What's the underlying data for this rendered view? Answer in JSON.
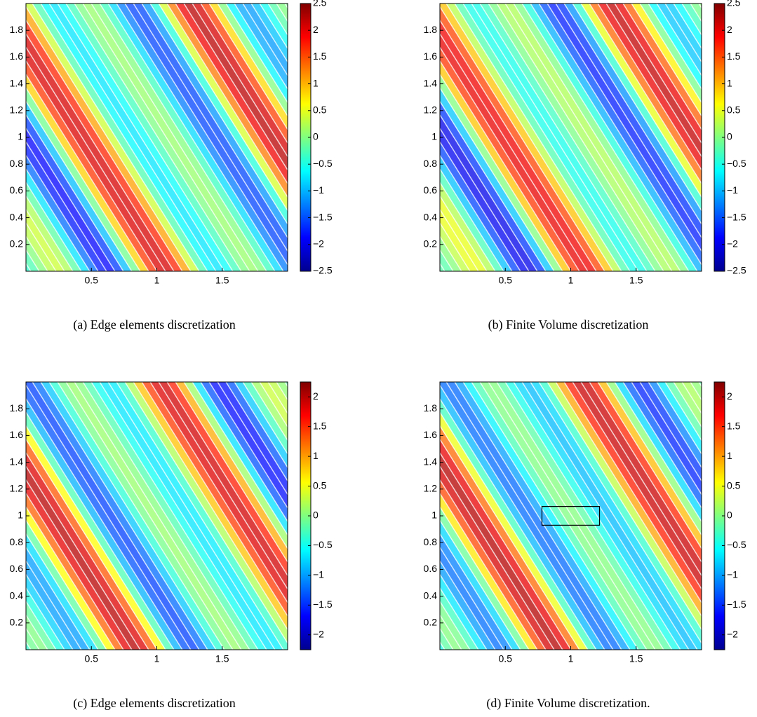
{
  "chart_data": [
    {
      "type": "contour",
      "caption": "(a)  Edge elements discretization",
      "colormap": "jet",
      "xlim": [
        0,
        2
      ],
      "ylim": [
        0,
        2
      ],
      "xticks": [
        0.5,
        1,
        1.5
      ],
      "yticks": [
        0.2,
        0.4,
        0.6,
        0.8,
        1,
        1.2,
        1.4,
        1.6,
        1.8
      ],
      "clim": [
        -2.5,
        2.5
      ],
      "cticks": [
        {
          "value": -2.5,
          "label": "−2.5"
        },
        {
          "value": -2,
          "label": "−2"
        },
        {
          "value": -1.5,
          "label": "−1.5"
        },
        {
          "value": -1,
          "label": "−1"
        },
        {
          "value": -0.5,
          "label": "−0.5"
        },
        0,
        0.5,
        1,
        1.5,
        2,
        2.5
      ]
    },
    {
      "type": "contour",
      "caption": "(b)  Finite Volume discretization",
      "colormap": "jet",
      "xlim": [
        0,
        2
      ],
      "ylim": [
        0,
        2
      ],
      "xticks": [
        0.5,
        1,
        1.5
      ],
      "yticks": [
        0.2,
        0.4,
        0.6,
        0.8,
        1,
        1.2,
        1.4,
        1.6,
        1.8
      ],
      "clim": [
        -2.5,
        2.5
      ],
      "cticks": [
        {
          "value": -2.5,
          "label": "−2.5"
        },
        {
          "value": -2,
          "label": "−2"
        },
        {
          "value": -1.5,
          "label": "−1.5"
        },
        {
          "value": -1,
          "label": "−1"
        },
        {
          "value": -0.5,
          "label": "−0.5"
        },
        0,
        0.5,
        1,
        1.5,
        2,
        2.5
      ]
    },
    {
      "type": "contour",
      "caption": "(c)  Edge elements discretization",
      "colormap": "jet",
      "xlim": [
        0,
        2
      ],
      "ylim": [
        0,
        2
      ],
      "xticks": [
        0.5,
        1,
        1.5
      ],
      "yticks": [
        0.2,
        0.4,
        0.6,
        0.8,
        1,
        1.2,
        1.4,
        1.6,
        1.8
      ],
      "clim": [
        -2.25,
        2.25
      ],
      "cticks": [
        {
          "value": -2,
          "label": "−2"
        },
        {
          "value": -1.5,
          "label": "−1.5"
        },
        {
          "value": -1,
          "label": "−1"
        },
        {
          "value": -0.5,
          "label": "−0.5"
        },
        0,
        0.5,
        1,
        1.5,
        2
      ]
    },
    {
      "type": "contour",
      "caption": "(d)  Finite Volume discretization.",
      "colormap": "jet",
      "xlim": [
        0,
        2
      ],
      "ylim": [
        0,
        2
      ],
      "xticks": [
        0.5,
        1,
        1.5
      ],
      "yticks": [
        0.2,
        0.4,
        0.6,
        0.8,
        1,
        1.2,
        1.4,
        1.6,
        1.8
      ],
      "clim": [
        -2.25,
        2.25
      ],
      "cticks": [
        {
          "value": -2,
          "label": "−2"
        },
        {
          "value": -1.5,
          "label": "−1.5"
        },
        {
          "value": -1,
          "label": "−1"
        },
        {
          "value": -0.5,
          "label": "−0.5"
        },
        0,
        0.5,
        1,
        1.5,
        2
      ],
      "highlight_box": {
        "x": [
          0.78,
          1.22
        ],
        "y": [
          0.93,
          1.07
        ]
      }
    }
  ]
}
